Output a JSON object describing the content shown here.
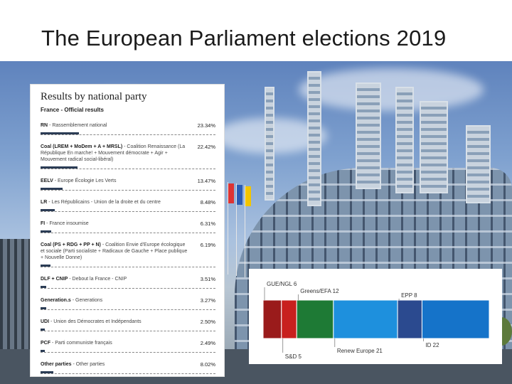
{
  "slide": {
    "title": "The European Parliament elections 2019"
  },
  "results": {
    "heading": "Results by national party",
    "subheading": "France - Official results",
    "bar_color": "#2b3c55",
    "parties": [
      {
        "code": "RN",
        "desc": " - Rassemblement national",
        "pct": "23.34%",
        "value": 23.34
      },
      {
        "code": "Coal (LREM + MoDem + A + MRSL)",
        "desc": " - Coalition Renaissance (La République En marche! + Mouvement démocrate + Agir + Mouvement radical social-libéral)",
        "pct": "22.42%",
        "value": 22.42
      },
      {
        "code": "EELV",
        "desc": " - Europe Écologie Les Verts",
        "pct": "13.47%",
        "value": 13.47
      },
      {
        "code": "LR",
        "desc": " - Les Républicains - Union de la droite et du centre",
        "pct": "8.48%",
        "value": 8.48
      },
      {
        "code": "FI",
        "desc": " - France insoumise",
        "pct": "6.31%",
        "value": 6.31
      },
      {
        "code": "Coal (PS + RDG + PP + N)",
        "desc": " - Coalition Envie d'Europe écologique et sociale (Parti socialiste + Radicaux de Gauche + Place publique + Nouvelle Donne)",
        "pct": "6.19%",
        "value": 6.19
      },
      {
        "code": "DLF + CNIP",
        "desc": " - Debout la France - CNIP",
        "pct": "3.51%",
        "value": 3.51
      },
      {
        "code": "Generation.s",
        "desc": " - Generations",
        "pct": "3.27%",
        "value": 3.27
      },
      {
        "code": "UDI",
        "desc": " - Union des Démocrates et Indépendants",
        "pct": "2.50%",
        "value": 2.5
      },
      {
        "code": "PCF",
        "desc": " - Parti communiste français",
        "pct": "2.49%",
        "value": 2.49
      },
      {
        "code": "Other parties",
        "desc": " - Other parties",
        "pct": "8.02%",
        "value": 8.02
      }
    ]
  },
  "seats": {
    "groups": [
      {
        "label": "GUE/NGL 6",
        "seats": 6,
        "color": "#9a1b1b",
        "label_pos": "top"
      },
      {
        "label": "S&D 5",
        "seats": 5,
        "color": "#c8201e",
        "label_pos": "bottom"
      },
      {
        "label": "Greens/EFA 12",
        "seats": 12,
        "color": "#1e7a35",
        "label_pos": "top"
      },
      {
        "label": "Renew Europe 21",
        "seats": 21,
        "color": "#1e90dd",
        "label_pos": "bottom"
      },
      {
        "label": "EPP 8",
        "seats": 8,
        "color": "#2b4a8f",
        "label_pos": "top"
      },
      {
        "label": "ID 22",
        "seats": 22,
        "color": "#1573c9",
        "label_pos": "bottom"
      }
    ]
  }
}
